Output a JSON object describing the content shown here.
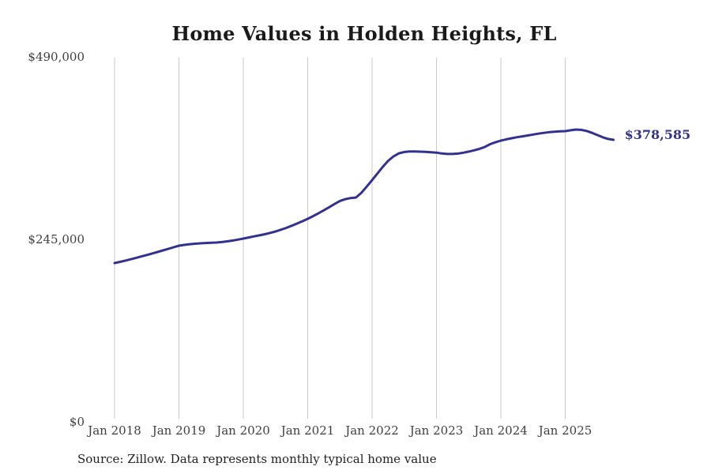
{
  "page": {
    "source_note": "Source: Zillow. Data represents monthly typical home value"
  },
  "colors": {
    "line": "#32328E",
    "annotation": "#32328E",
    "grid": "#C9C9C9",
    "title_text": "#1A1A1A",
    "axis_text": "#3F3F3F",
    "background": "#FFFFFF"
  },
  "chart_data": {
    "type": "line",
    "title": "Home Values in Holden Heights, FL",
    "xlabel": "",
    "ylabel": "",
    "ylim": [
      0,
      490000
    ],
    "y_ticks": [
      0,
      245000,
      490000
    ],
    "y_tick_labels": [
      "$0",
      "$245,000",
      "$490,000"
    ],
    "x_tick_labels": [
      "Jan 2018",
      "Jan 2019",
      "Jan 2020",
      "Jan 2021",
      "Jan 2022",
      "Jan 2023",
      "Jan 2024",
      "Jan 2025"
    ],
    "x_tick_months": [
      0,
      12,
      24,
      36,
      48,
      60,
      72,
      84
    ],
    "grid": "vertical",
    "legend": "none",
    "annotation": {
      "text": "$378,585",
      "value": 378585,
      "position": "line-end"
    },
    "x": [
      "2018-01",
      "2018-02",
      "2018-03",
      "2018-04",
      "2018-05",
      "2018-06",
      "2018-07",
      "2018-08",
      "2018-09",
      "2018-10",
      "2018-11",
      "2018-12",
      "2019-01",
      "2019-02",
      "2019-03",
      "2019-04",
      "2019-05",
      "2019-06",
      "2019-07",
      "2019-08",
      "2019-09",
      "2019-10",
      "2019-11",
      "2019-12",
      "2020-01",
      "2020-02",
      "2020-03",
      "2020-04",
      "2020-05",
      "2020-06",
      "2020-07",
      "2020-08",
      "2020-09",
      "2020-10",
      "2020-11",
      "2020-12",
      "2021-01",
      "2021-02",
      "2021-03",
      "2021-04",
      "2021-05",
      "2021-06",
      "2021-07",
      "2021-08",
      "2021-09",
      "2021-10",
      "2021-11",
      "2021-12",
      "2022-01",
      "2022-02",
      "2022-03",
      "2022-04",
      "2022-05",
      "2022-06",
      "2022-07",
      "2022-08",
      "2022-09",
      "2022-10",
      "2022-11",
      "2022-12",
      "2023-01",
      "2023-02",
      "2023-03",
      "2023-04",
      "2023-05",
      "2023-06",
      "2023-07",
      "2023-08",
      "2023-09",
      "2023-10",
      "2023-11",
      "2023-12",
      "2024-01",
      "2024-02",
      "2024-03",
      "2024-04",
      "2024-05",
      "2024-06",
      "2024-07",
      "2024-08",
      "2024-09",
      "2024-10",
      "2024-11",
      "2024-12",
      "2025-01",
      "2025-02",
      "2025-03",
      "2025-04",
      "2025-05",
      "2025-06",
      "2025-07",
      "2025-08",
      "2025-09",
      "2025-10"
    ],
    "values": [
      213200,
      214800,
      216500,
      218300,
      220200,
      222100,
      224000,
      226000,
      228000,
      230100,
      232200,
      234400,
      236500,
      237600,
      238500,
      239200,
      239700,
      240100,
      240400,
      240800,
      241400,
      242300,
      243400,
      244700,
      246100,
      247500,
      249000,
      250400,
      251900,
      253700,
      255600,
      257900,
      260400,
      263200,
      266200,
      269300,
      272600,
      276200,
      280000,
      284000,
      288200,
      292500,
      296500,
      299000,
      300500,
      301200,
      307500,
      315800,
      324500,
      333500,
      342500,
      350500,
      356500,
      360500,
      362300,
      362900,
      362900,
      362700,
      362400,
      362000,
      361500,
      360300,
      359600,
      359600,
      360200,
      361300,
      362800,
      364500,
      366400,
      369000,
      372800,
      375300,
      377600,
      379300,
      380800,
      382100,
      383300,
      384500,
      385700,
      386900,
      388000,
      388900,
      389600,
      390000,
      390300,
      391500,
      392400,
      392000,
      390500,
      388000,
      385000,
      382000,
      379800,
      378585
    ]
  }
}
